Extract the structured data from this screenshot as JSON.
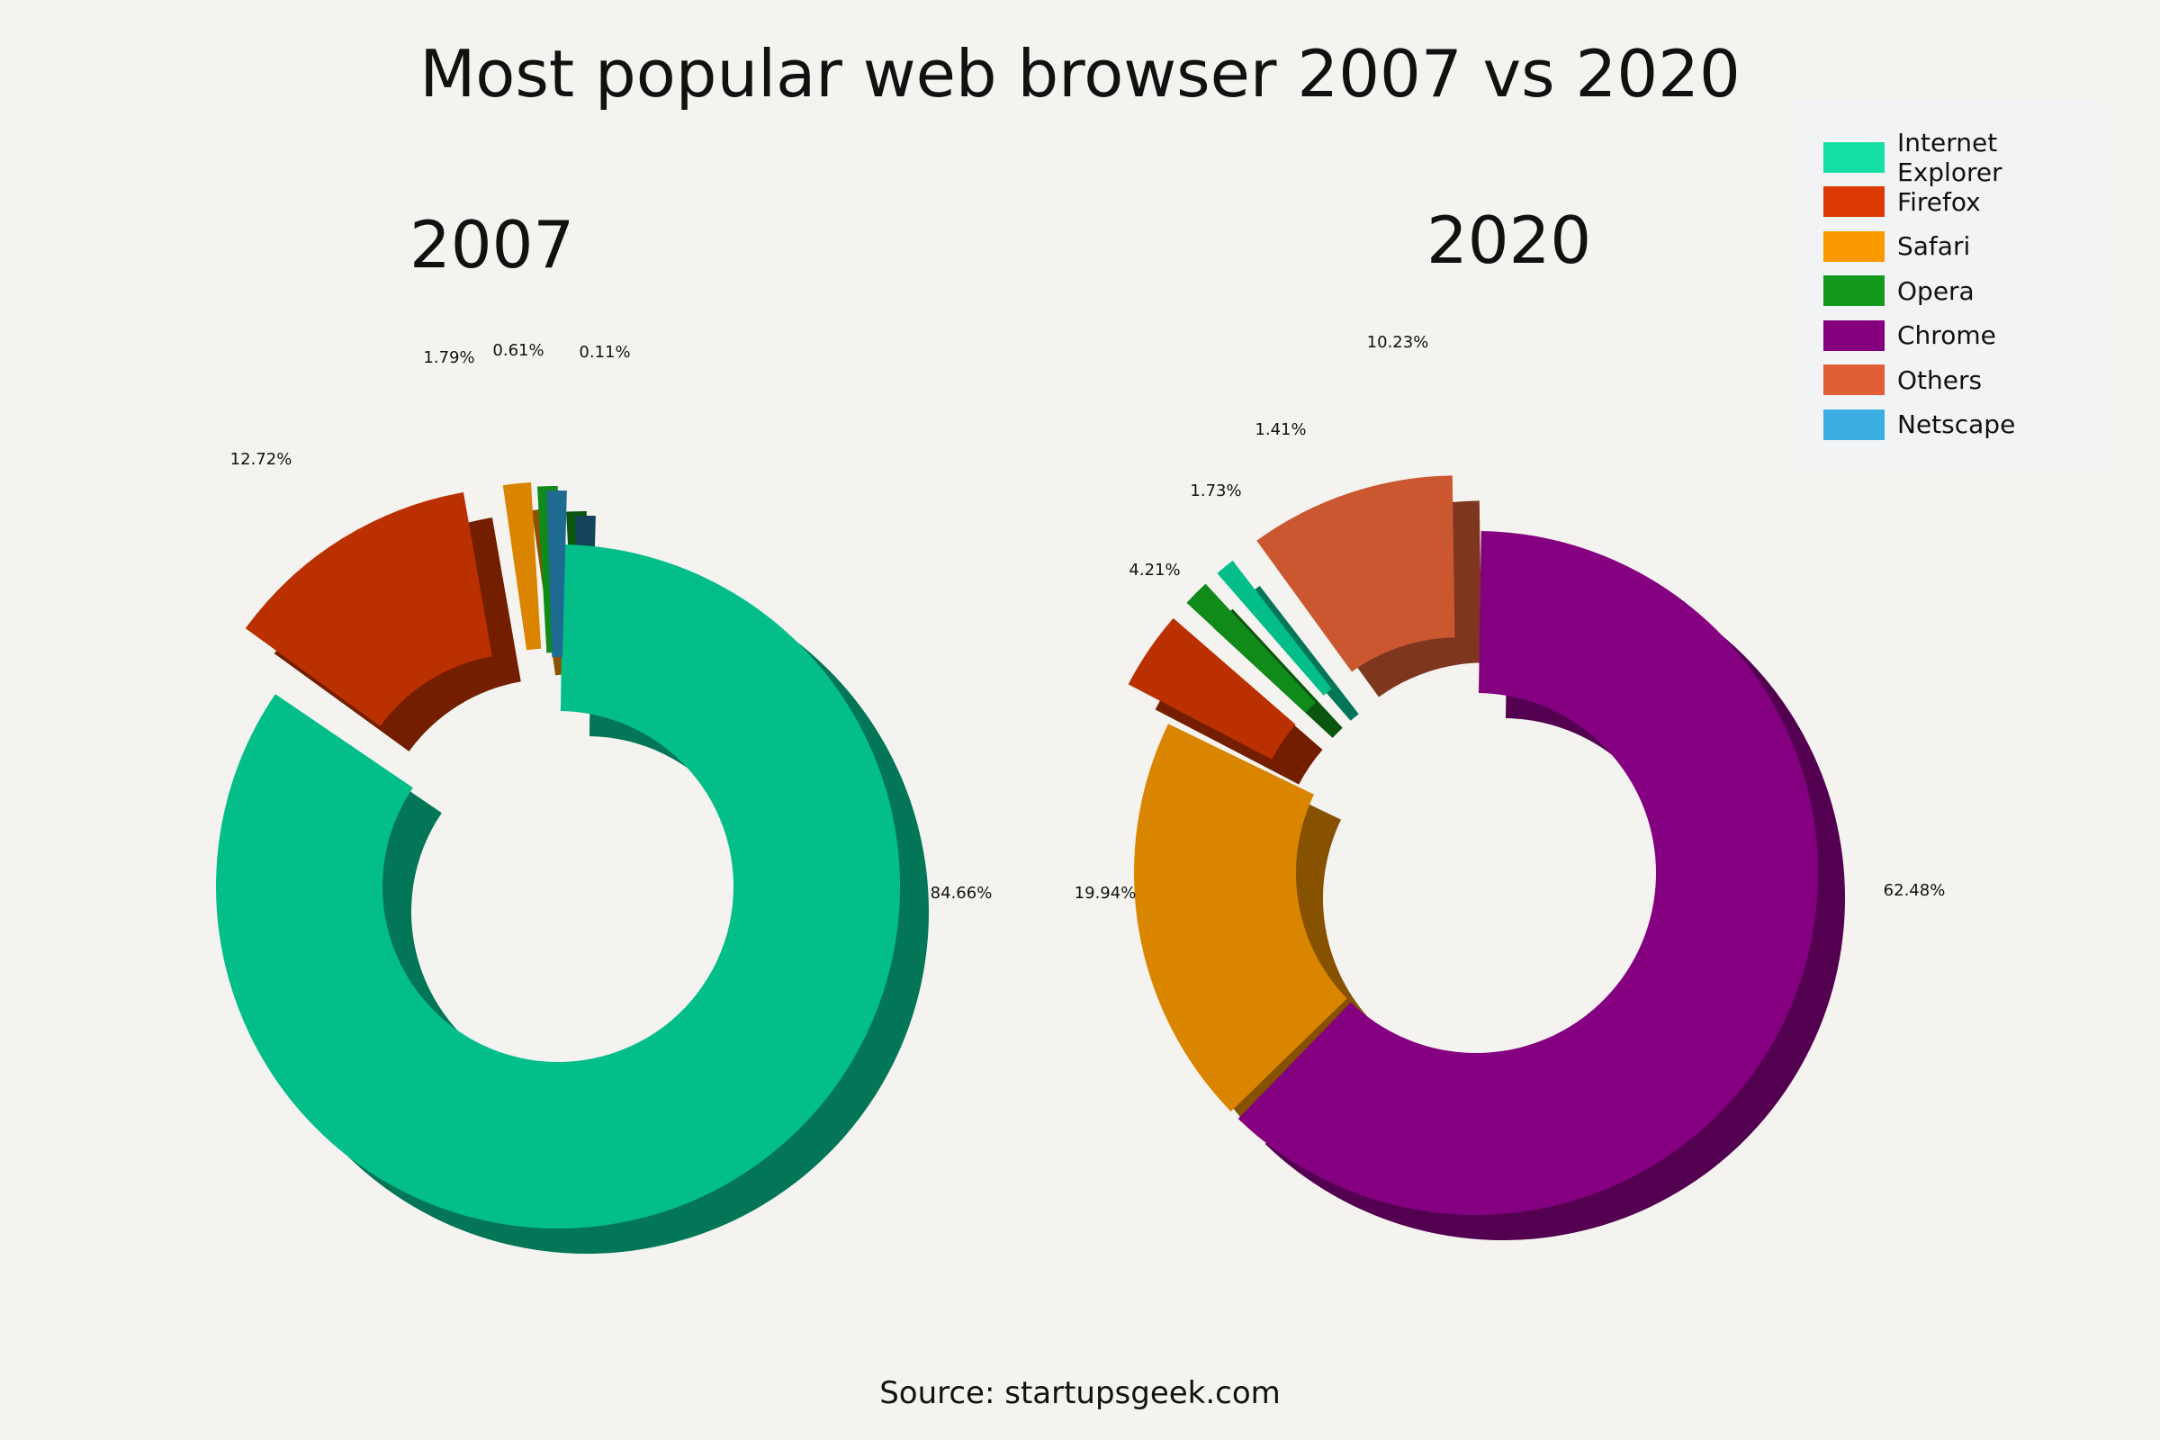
{
  "title": "Most popular web browser 2007 vs 2020",
  "source": "Source: startupsgeek.com",
  "legend": [
    {
      "name": "Internet Explorer",
      "color": "#14e0a5"
    },
    {
      "name": "Firefox",
      "color": "#dd3a03"
    },
    {
      "name": "Safari",
      "color": "#fb9a00"
    },
    {
      "name": "Opera",
      "color": "#139a1c"
    },
    {
      "name": "Chrome",
      "color": "#84007f"
    },
    {
      "name": "Others",
      "color": "#e05f35"
    },
    {
      "name": "Netscape",
      "color": "#3daee3"
    }
  ],
  "chart_data": [
    {
      "type": "pie",
      "title": "2007",
      "categories": [
        "Internet Explorer",
        "Firefox",
        "Safari",
        "Opera",
        "Netscape"
      ],
      "values": [
        84.66,
        12.72,
        1.79,
        0.61,
        0.11
      ],
      "labels": [
        "84.66%",
        "12.72%",
        "1.79%",
        "0.61%",
        "0.11%"
      ],
      "colors": [
        "#04be8a",
        "#bb3000",
        "#db8400",
        "#108a18",
        "#1e6a91"
      ]
    },
    {
      "type": "pie",
      "title": "2020",
      "categories": [
        "Chrome",
        "Safari",
        "Firefox",
        "Opera",
        "Internet Explorer",
        "Others"
      ],
      "values": [
        62.48,
        19.94,
        4.21,
        1.73,
        1.41,
        10.23
      ],
      "labels": [
        "62.48%",
        "19.94%",
        "4.21%",
        "1.73%",
        "1.41%",
        "10.23%"
      ],
      "colors": [
        "#840080",
        "#da8500",
        "#bb3000",
        "#108a18",
        "#04be8a",
        "#cb5730"
      ]
    }
  ]
}
